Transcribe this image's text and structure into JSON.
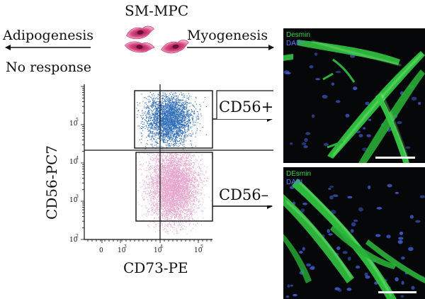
{
  "top": {
    "cell_type": "SM-MPC",
    "left_outcome": "Adipogenesis",
    "left_result": "No response",
    "right_outcome": "Myogenesis"
  },
  "flow": {
    "y_axis_label": "CD56-PC7",
    "x_axis_label": "CD73-PE",
    "y_ticks": [
      "10",
      "10",
      "10",
      "10"
    ],
    "y_tick_exponents": [
      "2",
      "3",
      "4",
      "5"
    ],
    "x_ticks": [
      "0",
      "10",
      "10",
      "10"
    ],
    "x_tick_exponents": [
      "",
      "3",
      "4",
      "5"
    ],
    "gate_high": "CD56+",
    "gate_low": "CD56–"
  },
  "panels": {
    "top": {
      "stain1": "Desmin",
      "stain2": "DAPI"
    },
    "bottom": {
      "stain1": "DEsmin",
      "stain2": "DAPI"
    }
  },
  "colors": {
    "cd56_pos_dots": "#2f6db8",
    "cd56_neg_dots": "#e7a6cc",
    "desmin": "#3bd34b",
    "dapi": "#4660d8",
    "cell_icon": "#d6437e"
  }
}
